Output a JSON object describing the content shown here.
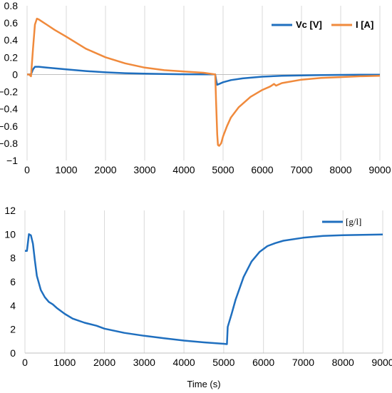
{
  "chart_data": [
    {
      "type": "line",
      "title": "",
      "xlabel": "",
      "ylabel": "",
      "xlim": [
        0,
        9000
      ],
      "ylim": [
        -1,
        0.8
      ],
      "xticks": [
        0,
        1000,
        2000,
        3000,
        4000,
        5000,
        6000,
        7000,
        8000,
        9000
      ],
      "xtick_labels": [
        "0",
        "1000",
        "2000",
        "3000",
        "4000",
        "5000",
        "6000",
        "7000",
        "8000",
        "9000"
      ],
      "yticks": [
        0.8,
        0.6,
        0.4,
        0.2,
        0,
        -0.2,
        -0.4,
        -0.6,
        -0.8,
        -1
      ],
      "ytick_labels": [
        "0.8",
        "0.6",
        "0.4",
        "0.2",
        "0",
        "−0.2",
        "−0.4",
        "−0.6",
        "−0.8",
        "−1"
      ],
      "grid": "vertical",
      "legend_position": "top-right",
      "series": [
        {
          "name": "Vc [V]",
          "color": "#1f6fbf",
          "x": [
            0,
            50,
            100,
            150,
            200,
            300,
            500,
            1000,
            1500,
            2000,
            2500,
            3000,
            3500,
            4000,
            4500,
            4800,
            4830,
            4850,
            4900,
            5000,
            5200,
            5500,
            6000,
            6500,
            7000,
            7500,
            8000,
            8500,
            9000
          ],
          "y": [
            0,
            0,
            0,
            0.06,
            0.09,
            0.09,
            0.08,
            0.06,
            0.04,
            0.025,
            0.015,
            0.01,
            0.005,
            0.003,
            0.002,
            0.001,
            -0.08,
            -0.12,
            -0.11,
            -0.09,
            -0.065,
            -0.045,
            -0.025,
            -0.015,
            -0.01,
            -0.007,
            -0.005,
            -0.003,
            -0.002
          ]
        },
        {
          "name": "I [A]",
          "color": "#f08a3c",
          "x": [
            0,
            50,
            100,
            150,
            200,
            250,
            300,
            400,
            500,
            700,
            1000,
            1500,
            2000,
            2500,
            3000,
            3500,
            4000,
            4500,
            4800,
            4820,
            4850,
            4870,
            4900,
            4950,
            5000,
            5100,
            5200,
            5400,
            5700,
            6000,
            6200,
            6300,
            6350,
            6400,
            6500,
            7000,
            7500,
            8000,
            8500,
            9000
          ],
          "y": [
            0,
            0,
            -0.02,
            0.3,
            0.58,
            0.65,
            0.64,
            0.61,
            0.58,
            0.52,
            0.44,
            0.3,
            0.2,
            0.13,
            0.08,
            0.05,
            0.035,
            0.02,
            0.0,
            -0.3,
            -0.7,
            -0.82,
            -0.83,
            -0.8,
            -0.72,
            -0.6,
            -0.5,
            -0.38,
            -0.26,
            -0.18,
            -0.14,
            -0.11,
            -0.13,
            -0.12,
            -0.1,
            -0.06,
            -0.04,
            -0.03,
            -0.02,
            -0.015
          ]
        }
      ]
    },
    {
      "type": "line",
      "title": "",
      "xlabel": "Time (s)",
      "ylabel": "",
      "xlim": [
        0,
        9000
      ],
      "ylim": [
        0,
        12
      ],
      "xticks": [
        0,
        1000,
        2000,
        3000,
        4000,
        5000,
        6000,
        7000,
        8000,
        9000
      ],
      "xtick_labels": [
        "0",
        "1000",
        "2000",
        "3000",
        "4000",
        "5000",
        "6000",
        "7000",
        "8000",
        "9000"
      ],
      "yticks": [
        12,
        10,
        8,
        6,
        4,
        2,
        0
      ],
      "ytick_labels": [
        "12",
        "10",
        "8",
        "6",
        "4",
        "2",
        "0"
      ],
      "grid": "vertical",
      "legend_position": "top-right",
      "series": [
        {
          "name": "[g/l]",
          "color": "#1f6fbf",
          "x": [
            0,
            50,
            100,
            150,
            200,
            250,
            300,
            400,
            500,
            600,
            700,
            800,
            1000,
            1200,
            1500,
            1800,
            2000,
            2500,
            3000,
            3500,
            4000,
            4500,
            5000,
            5080,
            5100,
            5200,
            5300,
            5500,
            5700,
            5900,
            6100,
            6300,
            6500,
            7000,
            7500,
            8000,
            8500,
            9000
          ],
          "y": [
            8.6,
            8.6,
            10.0,
            9.9,
            9.2,
            7.8,
            6.5,
            5.3,
            4.7,
            4.3,
            4.1,
            3.8,
            3.3,
            2.9,
            2.55,
            2.3,
            2.05,
            1.7,
            1.45,
            1.25,
            1.05,
            0.9,
            0.78,
            0.75,
            2.2,
            3.3,
            4.5,
            6.4,
            7.7,
            8.5,
            9.0,
            9.25,
            9.45,
            9.7,
            9.85,
            9.92,
            9.95,
            9.97
          ]
        }
      ]
    }
  ]
}
